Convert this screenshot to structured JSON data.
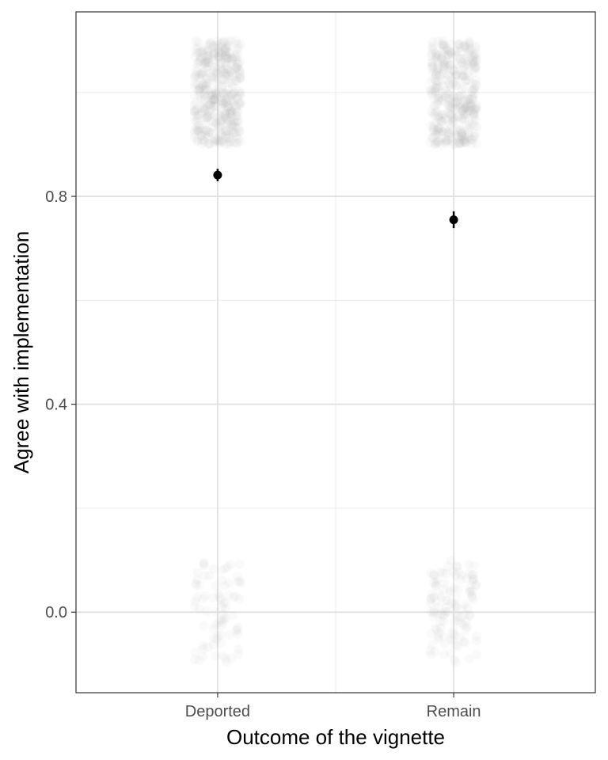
{
  "chart_data": {
    "type": "scatter",
    "title": "",
    "xlabel": "Outcome of the vignette",
    "ylabel": "Agree with implementation",
    "categories": [
      "Deported",
      "Remain"
    ],
    "ylim": [
      -0.155,
      1.155
    ],
    "y_ticks": [
      0.0,
      0.4,
      0.8
    ],
    "y_tick_labels": [
      "0.0",
      "0.4",
      "0.8"
    ],
    "y_minor_ticks": [
      0.2,
      0.6,
      1.0
    ],
    "grid": true,
    "legend": "none",
    "series": [
      {
        "kind": "mean_with_error",
        "x": [
          "Deported",
          "Remain"
        ],
        "y": [
          0.841,
          0.755
        ],
        "ci_low": [
          0.829,
          0.739
        ],
        "ci_high": [
          0.853,
          0.771
        ]
      }
    ],
    "jitter": [
      {
        "category": "Deported",
        "value": 1,
        "spread": 0.1,
        "count": 420
      },
      {
        "category": "Deported",
        "value": 0,
        "spread": 0.1,
        "count": 80
      },
      {
        "category": "Remain",
        "value": 1,
        "spread": 0.1,
        "count": 380
      },
      {
        "category": "Remain",
        "value": 0,
        "spread": 0.1,
        "count": 120
      }
    ],
    "colors": {
      "points": "#000000",
      "jitter": "#b0b0b0",
      "grid": "#ebebeb",
      "panel_border": "#333333"
    }
  }
}
